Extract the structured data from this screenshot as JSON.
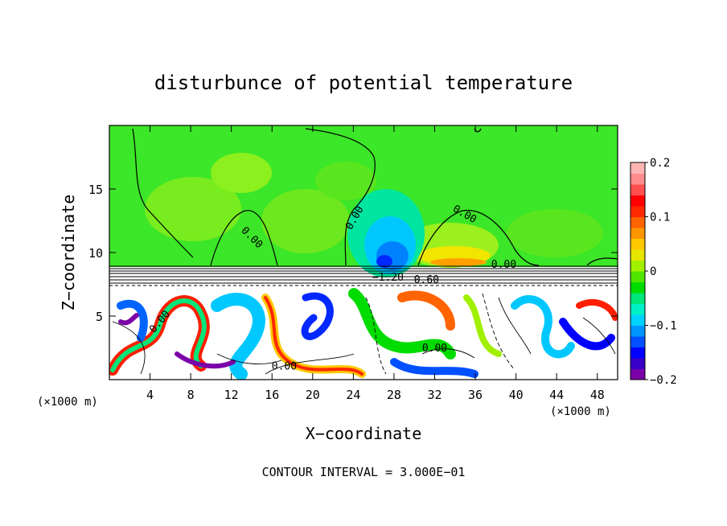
{
  "chart_data": {
    "type": "heatmap",
    "title": "disturbunce of potential temperature",
    "xlabel": "X−coordinate",
    "ylabel": "Z−coordinate",
    "x_unit": "(×1000 m)",
    "x_unit_right": "(×1000 m)",
    "xlim": [
      0,
      50
    ],
    "ylim": [
      0,
      20
    ],
    "x_ticks": [
      4,
      8,
      12,
      16,
      20,
      24,
      28,
      32,
      36,
      40,
      44,
      48
    ],
    "y_ticks": [
      5,
      10,
      15
    ],
    "colorbar": {
      "range": [
        -0.2,
        0.2
      ],
      "ticks": [
        {
          "value": 0.2,
          "label": "0.2"
        },
        {
          "value": 0.1,
          "label": "0.1"
        },
        {
          "value": 0,
          "label": "0"
        },
        {
          "value": -0.1,
          "label": "−0.1"
        },
        {
          "value": -0.2,
          "label": "−0.2"
        }
      ],
      "colors": [
        "#7a00a8",
        "#3a00c8",
        "#0000ff",
        "#0050ff",
        "#0096ff",
        "#00d2ff",
        "#00f0c8",
        "#00e678",
        "#00dc00",
        "#50e600",
        "#a0f000",
        "#e6e600",
        "#ffc800",
        "#ff9600",
        "#ff6400",
        "#ff2800",
        "#ff0000",
        "#ff5050",
        "#ff8c8c",
        "#ffb4b4"
      ]
    },
    "contour_labels": [
      {
        "text": "0.00",
        "x": 13.8,
        "z": 11.0,
        "rot": 45
      },
      {
        "text": "0.00",
        "x": 24.4,
        "z": 12.6,
        "rot": -60
      },
      {
        "text": "0.00",
        "x": 34.8,
        "z": 12.8,
        "rot": 30
      },
      {
        "text": "0.00",
        "x": 38.8,
        "z": 8.8,
        "rot": 0
      },
      {
        "text": "−1.20",
        "x": 27.4,
        "z": 7.8,
        "rot": 0
      },
      {
        "text": "0.60",
        "x": 31.2,
        "z": 7.6,
        "rot": 0
      },
      {
        "text": "0.00",
        "x": 5.2,
        "z": 4.4,
        "rot": -50
      },
      {
        "text": "0.00",
        "x": 32.0,
        "z": 2.2,
        "rot": 0
      },
      {
        "text": "0.00",
        "x": 17.2,
        "z": 0.8,
        "rot": 0
      }
    ],
    "footer": "CONTOUR INTERVAL = 3.000E−01"
  }
}
